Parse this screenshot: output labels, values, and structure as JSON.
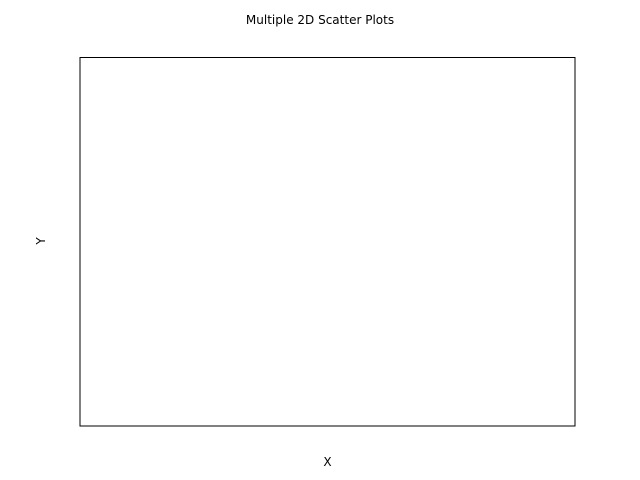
{
  "chart_data": {
    "type": "scatter",
    "title": "Multiple 2D Scatter Plots",
    "xlabel": "X",
    "ylabel": "Y",
    "series": [],
    "grid": false,
    "legend": "none",
    "colors": {
      "axes": "#000000",
      "background": "#ffffff"
    }
  }
}
